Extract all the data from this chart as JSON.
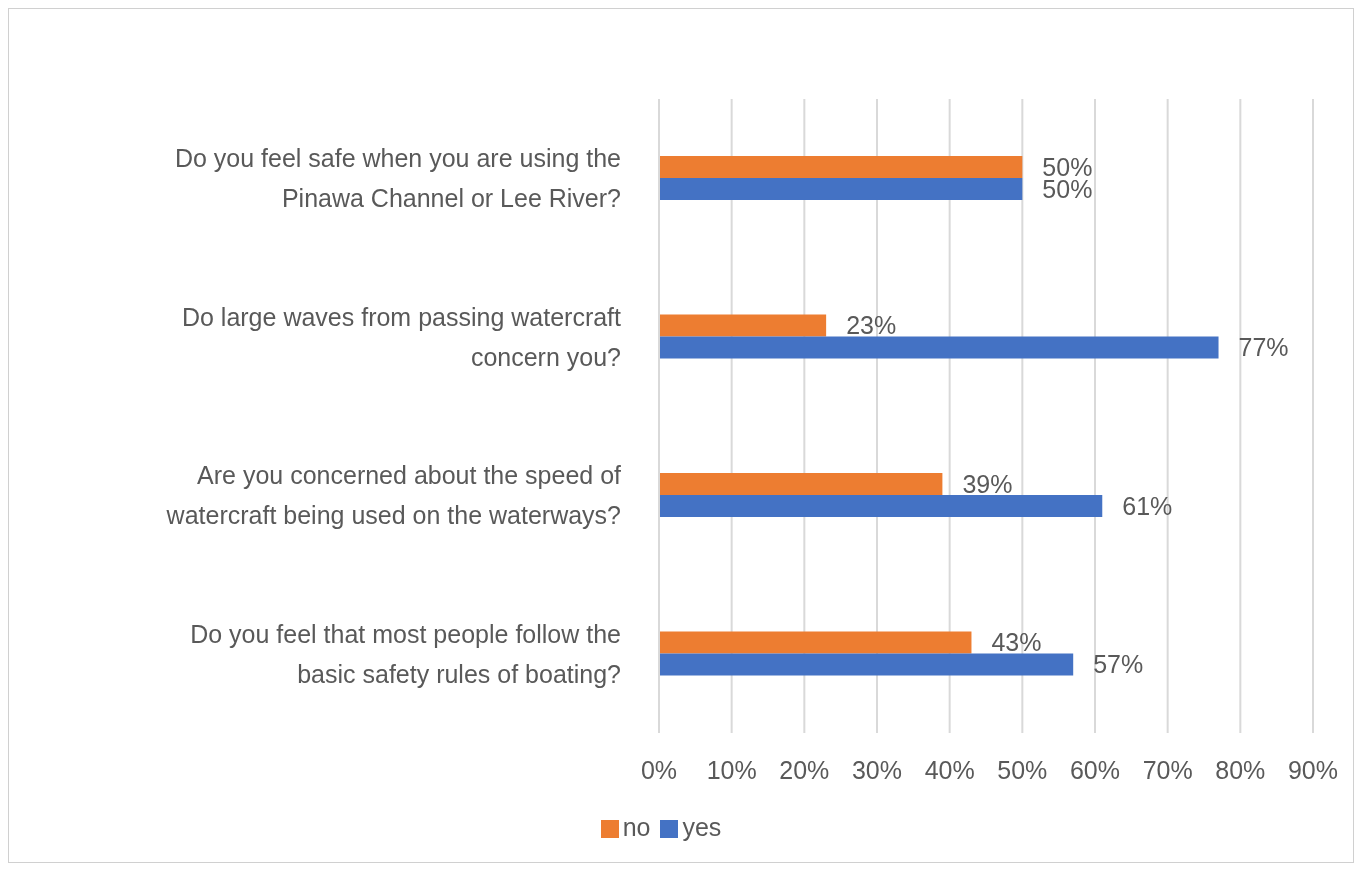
{
  "chart_data": {
    "type": "bar",
    "orientation": "horizontal",
    "categories": [
      "Do you feel safe when you are using the Pinawa Channel or Lee River?",
      "Do large waves from passing watercraft concern you?",
      "Are you concerned about the speed of watercraft being used on the waterways?",
      "Do you feel that most people follow the basic safety rules of boating?"
    ],
    "series": [
      {
        "name": "no",
        "color": "#ed7d31",
        "values": [
          50,
          23,
          39,
          43
        ],
        "value_labels": [
          "50%",
          "23%",
          "39%",
          "43%"
        ]
      },
      {
        "name": "yes",
        "color": "#4472c4",
        "values": [
          50,
          77,
          61,
          57
        ],
        "value_labels": [
          "50%",
          "77%",
          "61%",
          "57%"
        ]
      }
    ],
    "xlim": [
      0,
      90
    ],
    "xticks": [
      {
        "value": 0,
        "label": "0%"
      },
      {
        "value": 10,
        "label": "10%"
      },
      {
        "value": 20,
        "label": "20%"
      },
      {
        "value": 30,
        "label": "30%"
      },
      {
        "value": 40,
        "label": "40%"
      },
      {
        "value": 50,
        "label": "50%"
      },
      {
        "value": 60,
        "label": "60%"
      },
      {
        "value": 70,
        "label": "70%"
      },
      {
        "value": 80,
        "label": "80%"
      },
      {
        "value": 90,
        "label": "90%"
      }
    ],
    "grid": "x",
    "legend": "bottom"
  }
}
